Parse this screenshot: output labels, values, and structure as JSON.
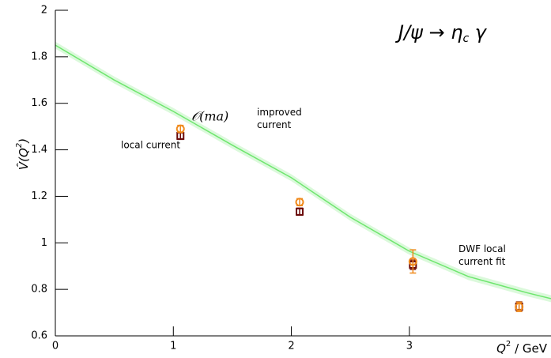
{
  "chart_data": {
    "type": "scatter",
    "title": {
      "main": "J/ψ → η",
      "sub": "c",
      "tail": " γ"
    },
    "x_label": {
      "main": "Q",
      "sup": "2",
      "tail": " / GeV"
    },
    "y_label": {
      "main": "V̂(Q",
      "sup": "2",
      "tail": ")"
    },
    "xlim": [
      0,
      4.2
    ],
    "ylim": [
      0.6,
      2
    ],
    "xticks": [
      0,
      1,
      2,
      3
    ],
    "yticks": [
      0.6,
      0.8,
      1,
      1.2,
      1.4,
      1.6,
      1.8,
      2
    ],
    "series": [
      {
        "name": "local current",
        "color": "#6b0a0a",
        "marker": "square",
        "x": [
          1.06,
          2.07,
          3.03,
          3.93
        ],
        "values": [
          1.46,
          1.134,
          0.906,
          0.726
        ],
        "errors": [
          0.015,
          0.015,
          0.02,
          0.02
        ]
      },
      {
        "name": "improved current",
        "prefix": "𝒪(ma)",
        "color": "#f08a1c",
        "marker": "circle",
        "x": [
          1.06,
          2.07,
          3.03,
          3.93
        ],
        "values": [
          1.49,
          1.175,
          0.92,
          0.725
        ],
        "errors": [
          0.015,
          0.015,
          0.05,
          0.02
        ]
      }
    ],
    "fit": {
      "name": "DWF local current fit",
      "color": "#6ee66e",
      "x": [
        0,
        0.5,
        1,
        1.5,
        2,
        2.5,
        3,
        3.5,
        4,
        4.2
      ],
      "values": [
        1.85,
        1.7,
        1.565,
        1.42,
        1.28,
        1.11,
        0.964,
        0.855,
        0.785,
        0.76
      ],
      "band": [
        0.015,
        0.015,
        0.015,
        0.015,
        0.015,
        0.015,
        0.015,
        0.015,
        0.015,
        0.015
      ]
    }
  }
}
